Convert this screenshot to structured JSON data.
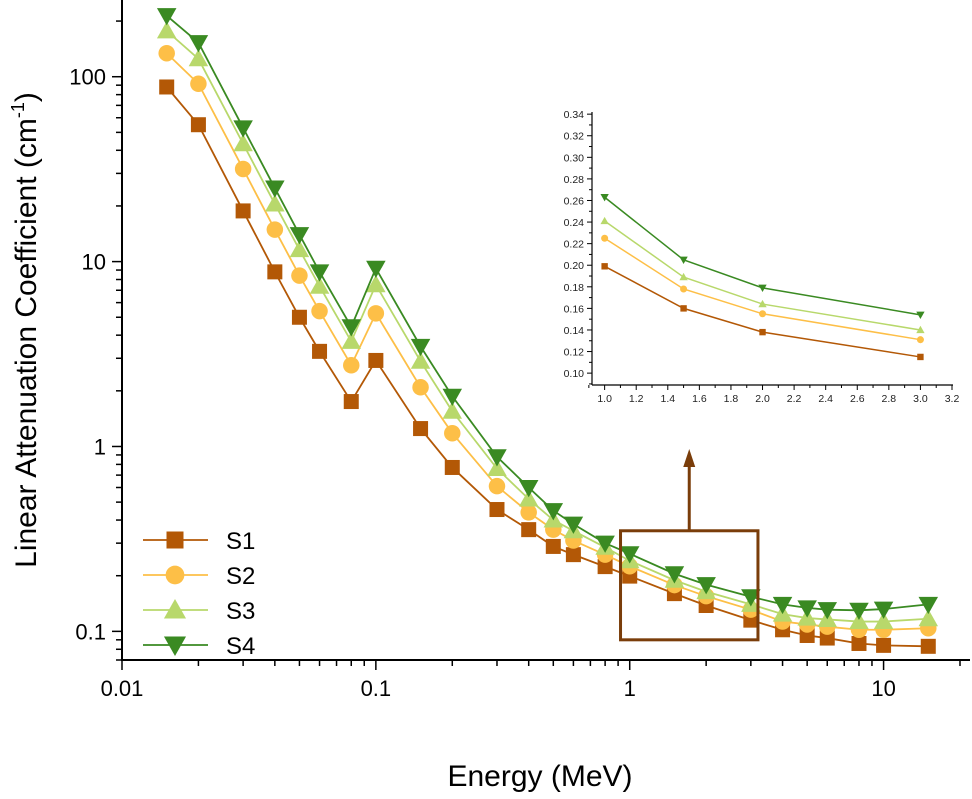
{
  "chart_data": [
    {
      "type": "line",
      "xlabel": "Energy (MeV)",
      "ylabel": "Linear Attenuation Coefficient (cm",
      "ylabel_sup": "-1",
      "ylabel_close": ")",
      "xscale": "log",
      "yscale": "log",
      "xlim": [
        0.01,
        20
      ],
      "ylim": [
        0.07,
        260
      ],
      "xticks": [
        {
          "v": 0.01,
          "label": "0.01"
        },
        {
          "v": 0.1,
          "label": "0.1"
        },
        {
          "v": 1,
          "label": "1"
        },
        {
          "v": 10,
          "label": "10"
        }
      ],
      "yticks": [
        {
          "v": 0.1,
          "label": "0.1"
        },
        {
          "v": 1,
          "label": "1"
        },
        {
          "v": 10,
          "label": "10"
        },
        {
          "v": 100,
          "label": "100"
        }
      ],
      "grid": false,
      "legend": "bottom-left",
      "x": [
        0.015,
        0.02,
        0.03,
        0.04,
        0.05,
        0.06,
        0.08,
        0.1,
        0.15,
        0.2,
        0.3,
        0.4,
        0.5,
        0.6,
        0.8,
        1,
        1.5,
        2,
        3,
        4,
        5,
        6,
        8,
        10,
        15
      ],
      "series": [
        {
          "name": "S1",
          "color": "#b35806",
          "marker": "square",
          "values": [
            88,
            55,
            18.8,
            8.8,
            5.0,
            3.27,
            1.75,
            2.92,
            1.25,
            0.77,
            0.456,
            0.355,
            0.288,
            0.26,
            0.224,
            0.199,
            0.16,
            0.138,
            0.115,
            0.102,
            0.095,
            0.092,
            0.086,
            0.084,
            0.083
          ]
        },
        {
          "name": "S2",
          "color": "#fdbf47",
          "marker": "circle",
          "values": [
            134,
            91.6,
            31.7,
            14.9,
            8.4,
            5.4,
            2.75,
            5.25,
            2.09,
            1.18,
            0.61,
            0.44,
            0.355,
            0.31,
            0.26,
            0.225,
            0.178,
            0.155,
            0.131,
            0.113,
            0.109,
            0.106,
            0.102,
            0.102,
            0.104
          ]
        },
        {
          "name": "S3",
          "color": "#b8d86b",
          "marker": "triangle-up",
          "values": [
            177,
            125,
            43.4,
            20.5,
            11.6,
            7.36,
            3.7,
            7.5,
            2.89,
            1.55,
            0.76,
            0.52,
            0.4,
            0.35,
            0.285,
            0.241,
            0.189,
            0.164,
            0.14,
            0.124,
            0.118,
            0.116,
            0.113,
            0.113,
            0.117
          ]
        },
        {
          "name": "S4",
          "color": "#3a8a22",
          "marker": "triangle-down",
          "values": [
            214,
            153,
            52.9,
            25,
            14,
            8.8,
            4.44,
            9.2,
            3.48,
            1.87,
            0.88,
            0.6,
            0.45,
            0.38,
            0.3,
            0.263,
            0.205,
            0.179,
            0.154,
            0.14,
            0.134,
            0.131,
            0.13,
            0.132,
            0.14
          ]
        }
      ],
      "annotation": {
        "box_color": "#7a3d0a",
        "zoom_region_x": [
          0.92,
          3.2
        ],
        "zoom_region_y": [
          0.09,
          0.35
        ]
      }
    },
    {
      "type": "line",
      "role": "inset",
      "xlim": [
        0.92,
        3.2
      ],
      "ylim": [
        0.089,
        0.342
      ],
      "xticks": [
        1.0,
        1.2,
        1.4,
        1.6,
        1.8,
        2.0,
        2.2,
        2.4,
        2.6,
        2.8,
        3.0,
        3.2
      ],
      "yticks": [
        0.1,
        0.12,
        0.14,
        0.16,
        0.18,
        0.2,
        0.22,
        0.24,
        0.26,
        0.28,
        0.3,
        0.32,
        0.34
      ],
      "x": [
        1,
        1.5,
        2,
        3
      ],
      "series": [
        {
          "color": "#b35806",
          "marker": "square",
          "values": [
            0.199,
            0.16,
            0.138,
            0.115
          ]
        },
        {
          "color": "#fdbf47",
          "marker": "circle",
          "values": [
            0.225,
            0.178,
            0.155,
            0.131
          ]
        },
        {
          "color": "#b8d86b",
          "marker": "triangle-up",
          "values": [
            0.241,
            0.189,
            0.164,
            0.14
          ]
        },
        {
          "color": "#3a8a22",
          "marker": "triangle-down",
          "values": [
            0.263,
            0.205,
            0.179,
            0.154
          ]
        }
      ]
    }
  ]
}
